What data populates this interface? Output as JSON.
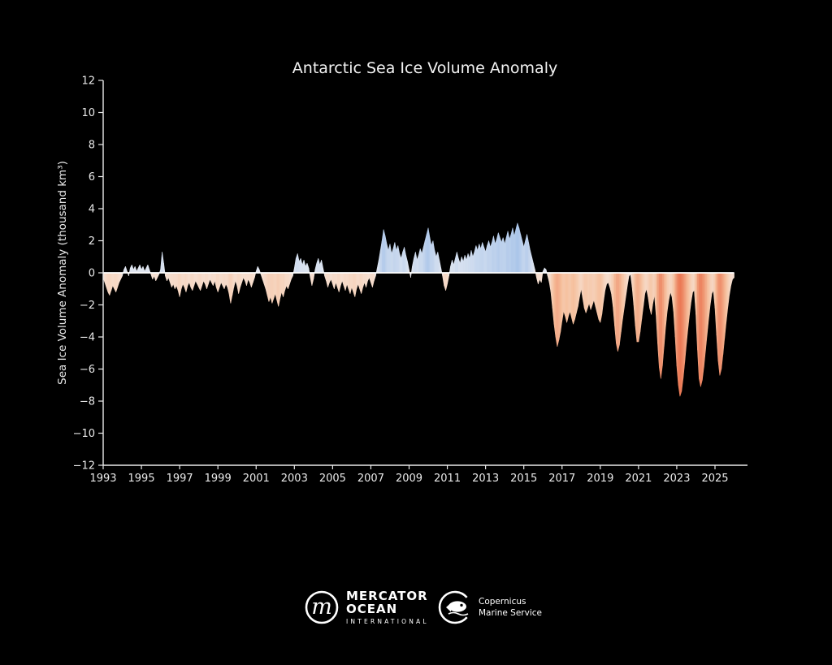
{
  "title": "Antarctic Sea Ice Volume Anomaly",
  "ylabel": "Sea Ice Volume Anomaly (thousand km³)",
  "footer": {
    "mercator": {
      "monogram": "m",
      "line1": "MERCATOR",
      "line2": "OCEAN",
      "line3": "INTERNATIONAL"
    },
    "copernicus": {
      "line1": "Copernicus",
      "line2": "Marine Service"
    }
  },
  "colors": {
    "background": "#000000",
    "axis": "#eaeaea",
    "tick_text": "#eaeaea",
    "title_text": "#f2f2f2",
    "zero_line": "#ffffff",
    "positive_low": "#e6eaf2",
    "positive_high": "#a6c3e9",
    "negative_low": "#f6e4d9",
    "negative_mid": "#f6c2a0",
    "negative_high": "#ea7450"
  },
  "chart_data": {
    "type": "area",
    "title": "Antarctic Sea Ice Volume Anomaly",
    "xlabel": "",
    "ylabel": "Sea Ice Volume Anomaly (thousand km³)",
    "grid": false,
    "legend": "none",
    "xlim": [
      1993.0,
      2026.7
    ],
    "ylim": [
      -12,
      12
    ],
    "x_ticks": [
      1993,
      1995,
      1997,
      1999,
      2001,
      2003,
      2005,
      2007,
      2009,
      2011,
      2013,
      2015,
      2017,
      2019,
      2021,
      2023,
      2025
    ],
    "y_ticks": [
      12,
      10,
      8,
      6,
      4,
      2,
      0,
      -2,
      -4,
      -6,
      -8,
      -10,
      -12
    ],
    "zero_baseline": 0,
    "x_start": 1993.0,
    "x_step_years": 0.0833333,
    "values": [
      -0.3,
      -0.6,
      -0.9,
      -1.2,
      -1.4,
      -1.1,
      -0.8,
      -1.0,
      -1.2,
      -0.9,
      -0.6,
      -0.4,
      -0.2,
      0.2,
      0.4,
      0.1,
      -0.2,
      0.3,
      0.5,
      0.2,
      0.4,
      0.1,
      0.3,
      0.5,
      0.2,
      0.4,
      0.1,
      0.3,
      0.5,
      0.2,
      -0.1,
      -0.4,
      -0.2,
      -0.5,
      -0.3,
      -0.1,
      0.2,
      1.3,
      0.6,
      -0.2,
      -0.5,
      -0.3,
      -0.6,
      -0.9,
      -0.7,
      -1.0,
      -0.8,
      -1.1,
      -1.5,
      -1.0,
      -0.7,
      -0.9,
      -1.2,
      -0.8,
      -0.6,
      -0.9,
      -1.1,
      -0.8,
      -0.5,
      -0.7,
      -0.9,
      -1.1,
      -0.8,
      -0.5,
      -0.7,
      -1.0,
      -0.7,
      -0.4,
      -0.6,
      -0.8,
      -0.5,
      -0.9,
      -1.2,
      -0.9,
      -0.6,
      -0.8,
      -1.0,
      -0.7,
      -0.9,
      -1.3,
      -1.9,
      -1.4,
      -0.9,
      -0.5,
      -0.8,
      -1.3,
      -0.9,
      -0.6,
      -0.3,
      -0.5,
      -0.8,
      -0.4,
      -0.6,
      -0.9,
      -0.6,
      -0.3,
      0.1,
      0.4,
      0.2,
      -0.1,
      -0.4,
      -0.7,
      -1.0,
      -1.4,
      -1.8,
      -1.5,
      -1.9,
      -1.6,
      -1.3,
      -1.7,
      -2.1,
      -1.6,
      -1.2,
      -1.5,
      -1.1,
      -0.8,
      -1.0,
      -0.7,
      -0.4,
      -0.2,
      0.3,
      0.9,
      1.2,
      0.7,
      0.9,
      0.5,
      0.8,
      0.4,
      0.6,
      0.3,
      -0.3,
      -0.8,
      -0.4,
      0.2,
      0.6,
      0.9,
      0.5,
      0.8,
      0.3,
      -0.2,
      -0.5,
      -0.9,
      -0.6,
      -0.4,
      -0.7,
      -1.0,
      -0.6,
      -0.9,
      -1.2,
      -0.8,
      -0.5,
      -0.8,
      -1.1,
      -0.7,
      -1.0,
      -1.3,
      -0.9,
      -1.2,
      -1.5,
      -1.0,
      -0.7,
      -1.0,
      -1.3,
      -0.9,
      -0.6,
      -0.9,
      -0.5,
      -0.3,
      -0.6,
      -0.9,
      -0.5,
      -0.2,
      0.3,
      0.8,
      1.4,
      2.0,
      2.7,
      2.3,
      1.8,
      1.4,
      1.8,
      1.2,
      1.5,
      1.9,
      1.4,
      1.7,
      1.2,
      0.9,
      1.3,
      1.6,
      1.1,
      0.7,
      0.2,
      -0.3,
      0.4,
      0.9,
      1.3,
      0.8,
      1.1,
      1.5,
      1.2,
      1.6,
      2.0,
      2.4,
      2.8,
      2.2,
      1.7,
      2.0,
      1.4,
      1.0,
      1.3,
      0.8,
      0.3,
      -0.2,
      -0.8,
      -1.1,
      -0.7,
      -0.2,
      0.4,
      0.8,
      0.5,
      0.9,
      1.3,
      0.9,
      0.6,
      1.0,
      0.7,
      1.1,
      0.8,
      1.2,
      0.9,
      1.4,
      1.0,
      1.3,
      1.7,
      1.4,
      1.8,
      1.5,
      1.9,
      1.6,
      1.3,
      1.7,
      2.0,
      1.6,
      1.9,
      2.3,
      1.8,
      2.1,
      2.5,
      2.2,
      1.9,
      2.2,
      1.8,
      2.2,
      2.6,
      2.1,
      2.4,
      2.8,
      2.3,
      2.7,
      3.1,
      2.8,
      2.4,
      2.0,
      1.6,
      2.0,
      2.4,
      1.9,
      1.4,
      1.0,
      0.6,
      0.2,
      -0.3,
      -0.7,
      -0.4,
      -0.6,
      0.1,
      0.3,
      0.2,
      -0.2,
      -0.6,
      -1.2,
      -2.2,
      -3.2,
      -4.0,
      -4.6,
      -4.2,
      -3.7,
      -3.0,
      -2.4,
      -2.7,
      -3.1,
      -2.7,
      -2.4,
      -2.8,
      -3.2,
      -2.9,
      -2.5,
      -2.1,
      -1.5,
      -1.0,
      -1.6,
      -2.2,
      -2.5,
      -2.2,
      -1.9,
      -2.3,
      -2.0,
      -1.7,
      -2.1,
      -2.5,
      -2.9,
      -3.1,
      -2.6,
      -1.8,
      -1.1,
      -0.7,
      -0.6,
      -0.9,
      -1.3,
      -2.1,
      -3.3,
      -4.4,
      -4.9,
      -4.5,
      -3.7,
      -2.9,
      -2.2,
      -1.5,
      -0.8,
      -0.2,
      -0.1,
      -0.9,
      -2.0,
      -3.3,
      -4.3,
      -4.3,
      -3.7,
      -2.9,
      -2.1,
      -1.3,
      -1.0,
      -1.5,
      -2.2,
      -2.6,
      -1.9,
      -1.4,
      -2.6,
      -4.4,
      -5.9,
      -6.6,
      -5.8,
      -4.6,
      -3.4,
      -2.4,
      -1.7,
      -1.2,
      -1.5,
      -2.4,
      -4.0,
      -5.8,
      -7.0,
      -7.7,
      -7.4,
      -6.6,
      -5.6,
      -4.5,
      -3.5,
      -2.6,
      -1.8,
      -1.2,
      -1.1,
      -2.6,
      -4.8,
      -6.6,
      -7.1,
      -6.7,
      -5.9,
      -4.9,
      -3.9,
      -2.9,
      -2.0,
      -1.3,
      -1.1,
      -2.2,
      -3.9,
      -5.5,
      -6.4,
      -6.0,
      -5.1,
      -4.1,
      -3.1,
      -2.2,
      -1.4,
      -0.8,
      -0.4,
      -0.3
    ]
  }
}
